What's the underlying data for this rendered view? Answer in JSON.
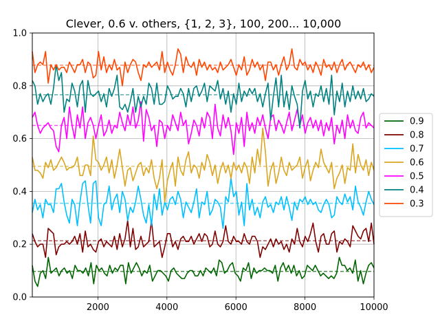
{
  "chart_data": {
    "type": "line",
    "title": "Clever, 0.6 v. others, {1, 2, 3}, 100, 200... 10,000",
    "xlabel": "",
    "ylabel": "",
    "xlim": [
      100,
      10000
    ],
    "ylim": [
      0.0,
      1.0
    ],
    "xticks": [
      2000,
      4000,
      6000,
      8000,
      10000
    ],
    "xtick_labels": [
      "2000",
      "4000",
      "6000",
      "8000",
      "10000"
    ],
    "yticks": [
      0.0,
      0.2,
      0.4,
      0.6,
      0.8,
      1.0
    ],
    "ytick_labels": [
      "0.0",
      "0.2",
      "0.4",
      "0.6",
      "0.8",
      "1.0"
    ],
    "grid": true,
    "legend_position": "right",
    "series": [
      {
        "name": "0.9",
        "color": "#006400",
        "mean": 0.097,
        "values": [
          0.12,
          0.06,
          0.04,
          0.09,
          0.1,
          0.07,
          0.15,
          0.09,
          0.1,
          0.11,
          0.08,
          0.1,
          0.11,
          0.09,
          0.1,
          0.07,
          0.12,
          0.1,
          0.1,
          0.09,
          0.11,
          0.08,
          0.13,
          0.05,
          0.12,
          0.1,
          0.11,
          0.09,
          0.08,
          0.12,
          0.09,
          0.11,
          0.1,
          0.12,
          0.12,
          0.05,
          0.13,
          0.09,
          0.11,
          0.13,
          0.11,
          0.08,
          0.1,
          0.09,
          0.12,
          0.06,
          0.08,
          0.1,
          0.1,
          0.09,
          0.08,
          0.06,
          0.1,
          0.11,
          0.09,
          0.08,
          0.07,
          0.07,
          0.09,
          0.1,
          0.1,
          0.08,
          0.08,
          0.1,
          0.08,
          0.11,
          0.1,
          0.09,
          0.11,
          0.08,
          0.14,
          0.13,
          0.09,
          0.1,
          0.12,
          0.13,
          0.09,
          0.08,
          0.06,
          0.11,
          0.1,
          0.13,
          0.07,
          0.11,
          0.09,
          0.1,
          0.1,
          0.11,
          0.1,
          0.1,
          0.09,
          0.12,
          0.06,
          0.11,
          0.13,
          0.1,
          0.12,
          0.09,
          0.12,
          0.08,
          0.1,
          0.07,
          0.08,
          0.12,
          0.11,
          0.1,
          0.12,
          0.1,
          0.08,
          0.09,
          0.08,
          0.07,
          0.08,
          0.07,
          0.09,
          0.15,
          0.12,
          0.12,
          0.1,
          0.11,
          0.09,
          0.14,
          0.06,
          0.1,
          0.05,
          0.09,
          0.12,
          0.13,
          0.11
        ]
      },
      {
        "name": "0.8",
        "color": "#7f0000",
        "mean": 0.213,
        "values": [
          0.24,
          0.21,
          0.19,
          0.2,
          0.2,
          0.15,
          0.26,
          0.25,
          0.24,
          0.16,
          0.19,
          0.2,
          0.2,
          0.21,
          0.2,
          0.21,
          0.23,
          0.2,
          0.24,
          0.17,
          0.25,
          0.19,
          0.2,
          0.18,
          0.17,
          0.21,
          0.22,
          0.19,
          0.21,
          0.2,
          0.19,
          0.23,
          0.18,
          0.24,
          0.19,
          0.22,
          0.29,
          0.19,
          0.26,
          0.18,
          0.19,
          0.23,
          0.19,
          0.2,
          0.21,
          0.29,
          0.19,
          0.2,
          0.21,
          0.15,
          0.19,
          0.24,
          0.24,
          0.19,
          0.21,
          0.18,
          0.22,
          0.23,
          0.21,
          0.21,
          0.23,
          0.2,
          0.22,
          0.24,
          0.21,
          0.24,
          0.23,
          0.19,
          0.2,
          0.25,
          0.2,
          0.19,
          0.21,
          0.27,
          0.21,
          0.2,
          0.23,
          0.21,
          0.21,
          0.2,
          0.24,
          0.21,
          0.2,
          0.23,
          0.23,
          0.21,
          0.15,
          0.19,
          0.18,
          0.2,
          0.22,
          0.19,
          0.22,
          0.2,
          0.21,
          0.18,
          0.2,
          0.17,
          0.22,
          0.2,
          0.26,
          0.21,
          0.19,
          0.23,
          0.21,
          0.24,
          0.28,
          0.21,
          0.17,
          0.23,
          0.24,
          0.2,
          0.2,
          0.24,
          0.25,
          0.17,
          0.21,
          0.2,
          0.22,
          0.21,
          0.19,
          0.27,
          0.25,
          0.23,
          0.22,
          0.25,
          0.26,
          0.21,
          0.28,
          0.2
        ]
      },
      {
        "name": "0.7",
        "color": "#00bfff",
        "mean": 0.355,
        "values": [
          0.32,
          0.37,
          0.33,
          0.35,
          0.3,
          0.37,
          0.35,
          0.35,
          0.32,
          0.41,
          0.41,
          0.43,
          0.36,
          0.31,
          0.28,
          0.37,
          0.35,
          0.27,
          0.36,
          0.43,
          0.44,
          0.35,
          0.28,
          0.43,
          0.44,
          0.3,
          0.27,
          0.35,
          0.36,
          0.42,
          0.33,
          0.37,
          0.39,
          0.32,
          0.4,
          0.37,
          0.29,
          0.34,
          0.32,
          0.36,
          0.42,
          0.37,
          0.31,
          0.28,
          0.35,
          0.27,
          0.39,
          0.33,
          0.41,
          0.31,
          0.36,
          0.33,
          0.37,
          0.38,
          0.35,
          0.4,
          0.37,
          0.3,
          0.36,
          0.34,
          0.32,
          0.36,
          0.41,
          0.3,
          0.36,
          0.35,
          0.4,
          0.31,
          0.33,
          0.37,
          0.36,
          0.34,
          0.26,
          0.38,
          0.36,
          0.45,
          0.38,
          0.4,
          0.31,
          0.36,
          0.27,
          0.43,
          0.33,
          0.37,
          0.31,
          0.34,
          0.3,
          0.36,
          0.38,
          0.34,
          0.35,
          0.32,
          0.36,
          0.35,
          0.38,
          0.33,
          0.38,
          0.34,
          0.29,
          0.36,
          0.33,
          0.37,
          0.36,
          0.38,
          0.35,
          0.37,
          0.35,
          0.36,
          0.33,
          0.32,
          0.35,
          0.37,
          0.35,
          0.3,
          0.31,
          0.38,
          0.36,
          0.35,
          0.39,
          0.36,
          0.38,
          0.33,
          0.42,
          0.36,
          0.34,
          0.31,
          0.36,
          0.4,
          0.37,
          0.35
        ]
      },
      {
        "name": "0.6",
        "color": "#daa520",
        "mean": 0.495,
        "values": [
          0.53,
          0.48,
          0.48,
          0.47,
          0.45,
          0.51,
          0.49,
          0.52,
          0.48,
          0.49,
          0.51,
          0.53,
          0.51,
          0.48,
          0.49,
          0.49,
          0.5,
          0.53,
          0.46,
          0.46,
          0.5,
          0.5,
          0.46,
          0.61,
          0.52,
          0.51,
          0.48,
          0.5,
          0.53,
          0.47,
          0.52,
          0.45,
          0.5,
          0.56,
          0.49,
          0.42,
          0.48,
          0.49,
          0.44,
          0.47,
          0.5,
          0.51,
          0.46,
          0.49,
          0.47,
          0.52,
          0.45,
          0.41,
          0.45,
          0.52,
          0.36,
          0.44,
          0.48,
          0.51,
          0.42,
          0.53,
          0.48,
          0.46,
          0.52,
          0.55,
          0.47,
          0.5,
          0.49,
          0.45,
          0.51,
          0.48,
          0.54,
          0.51,
          0.46,
          0.5,
          0.43,
          0.48,
          0.51,
          0.47,
          0.5,
          0.45,
          0.51,
          0.48,
          0.5,
          0.47,
          0.51,
          0.49,
          0.43,
          0.53,
          0.47,
          0.56,
          0.5,
          0.64,
          0.55,
          0.42,
          0.48,
          0.51,
          0.43,
          0.47,
          0.53,
          0.48,
          0.46,
          0.51,
          0.48,
          0.49,
          0.5,
          0.53,
          0.45,
          0.49,
          0.52,
          0.44,
          0.48,
          0.51,
          0.49,
          0.56,
          0.51,
          0.49,
          0.47,
          0.51,
          0.41,
          0.45,
          0.47,
          0.5,
          0.43,
          0.49,
          0.48,
          0.58,
          0.47,
          0.54,
          0.5,
          0.48,
          0.52,
          0.46,
          0.51,
          0.48
        ]
      },
      {
        "name": "0.5",
        "color": "#ff00ff",
        "mean": 0.65,
        "values": [
          0.68,
          0.7,
          0.65,
          0.62,
          0.64,
          0.65,
          0.66,
          0.64,
          0.63,
          0.57,
          0.55,
          0.65,
          0.68,
          0.6,
          0.72,
          0.65,
          0.6,
          0.69,
          0.64,
          0.72,
          0.6,
          0.66,
          0.68,
          0.65,
          0.6,
          0.65,
          0.69,
          0.61,
          0.63,
          0.67,
          0.62,
          0.65,
          0.64,
          0.7,
          0.66,
          0.63,
          0.69,
          0.65,
          0.72,
          0.64,
          0.67,
          0.74,
          0.59,
          0.71,
          0.68,
          0.63,
          0.65,
          0.57,
          0.67,
          0.66,
          0.6,
          0.65,
          0.63,
          0.69,
          0.66,
          0.63,
          0.7,
          0.65,
          0.67,
          0.58,
          0.62,
          0.67,
          0.65,
          0.61,
          0.68,
          0.64,
          0.7,
          0.68,
          0.6,
          0.73,
          0.64,
          0.61,
          0.69,
          0.64,
          0.68,
          0.63,
          0.54,
          0.66,
          0.62,
          0.68,
          0.57,
          0.7,
          0.63,
          0.66,
          0.62,
          0.68,
          0.65,
          0.69,
          0.64,
          0.6,
          0.68,
          0.69,
          0.63,
          0.67,
          0.65,
          0.62,
          0.66,
          0.7,
          0.63,
          0.67,
          0.71,
          0.65,
          0.69,
          0.62,
          0.66,
          0.68,
          0.64,
          0.67,
          0.63,
          0.67,
          0.61,
          0.66,
          0.63,
          0.68,
          0.58,
          0.65,
          0.62,
          0.67,
          0.6,
          0.69,
          0.64,
          0.67,
          0.63,
          0.62,
          0.68,
          0.7,
          0.64,
          0.66,
          0.65,
          0.64
        ]
      },
      {
        "name": "0.4",
        "color": "#008080",
        "mean": 0.766,
        "values": [
          0.82,
          0.8,
          0.73,
          0.77,
          0.74,
          0.76,
          0.77,
          0.73,
          0.79,
          0.88,
          0.82,
          0.85,
          0.7,
          0.75,
          0.74,
          0.81,
          0.78,
          0.72,
          0.8,
          0.82,
          0.7,
          0.82,
          0.77,
          0.76,
          0.77,
          0.78,
          0.74,
          0.77,
          0.72,
          0.79,
          0.76,
          0.79,
          0.84,
          0.72,
          0.71,
          0.73,
          0.7,
          0.74,
          0.79,
          0.7,
          0.76,
          0.72,
          0.76,
          0.73,
          0.81,
          0.79,
          0.73,
          0.81,
          0.73,
          0.73,
          0.74,
          0.8,
          0.78,
          0.75,
          0.76,
          0.76,
          0.79,
          0.77,
          0.72,
          0.79,
          0.74,
          0.79,
          0.8,
          0.76,
          0.78,
          0.81,
          0.74,
          0.8,
          0.79,
          0.78,
          0.82,
          0.75,
          0.79,
          0.73,
          0.78,
          0.7,
          0.77,
          0.73,
          0.81,
          0.74,
          0.78,
          0.76,
          0.79,
          0.77,
          0.79,
          0.74,
          0.77,
          0.72,
          0.77,
          0.81,
          0.67,
          0.76,
          0.83,
          0.72,
          0.84,
          0.72,
          0.78,
          0.71,
          0.8,
          0.76,
          0.73,
          0.64,
          0.78,
          0.82,
          0.75,
          0.78,
          0.72,
          0.77,
          0.76,
          0.8,
          0.74,
          0.79,
          0.73,
          0.84,
          0.69,
          0.78,
          0.74,
          0.81,
          0.72,
          0.78,
          0.74,
          0.8,
          0.75,
          0.78,
          0.75,
          0.79,
          0.74,
          0.75,
          0.77,
          0.76
        ]
      },
      {
        "name": "0.3",
        "color": "#ff4500",
        "mean": 0.878,
        "values": [
          0.93,
          0.85,
          0.88,
          0.89,
          0.88,
          0.93,
          0.81,
          0.88,
          0.86,
          0.88,
          0.86,
          0.87,
          0.87,
          0.85,
          0.89,
          0.87,
          0.85,
          0.88,
          0.88,
          0.9,
          0.85,
          0.89,
          0.88,
          0.83,
          0.84,
          0.93,
          0.86,
          0.91,
          0.85,
          0.88,
          0.86,
          0.9,
          0.86,
          0.87,
          0.8,
          0.89,
          0.85,
          0.88,
          0.9,
          0.89,
          0.85,
          0.82,
          0.88,
          0.87,
          0.89,
          0.87,
          0.88,
          0.89,
          0.86,
          0.93,
          0.85,
          0.89,
          0.86,
          0.84,
          0.88,
          0.94,
          0.92,
          0.85,
          0.91,
          0.88,
          0.87,
          0.89,
          0.84,
          0.9,
          0.87,
          0.89,
          0.86,
          0.88,
          0.86,
          0.87,
          0.85,
          0.89,
          0.86,
          0.87,
          0.88,
          0.9,
          0.87,
          0.84,
          0.88,
          0.86,
          0.91,
          0.84,
          0.86,
          0.9,
          0.87,
          0.89,
          0.86,
          0.88,
          0.82,
          0.89,
          0.89,
          0.86,
          0.88,
          0.84,
          0.88,
          0.91,
          0.86,
          0.88,
          0.94,
          0.87,
          0.86,
          0.9,
          0.88,
          0.89,
          0.86,
          0.88,
          0.85,
          0.89,
          0.87,
          0.84,
          0.9,
          0.87,
          0.88,
          0.86,
          0.89,
          0.85,
          0.88,
          0.9,
          0.86,
          0.88,
          0.89,
          0.87,
          0.85,
          0.88,
          0.87,
          0.89,
          0.86,
          0.88,
          0.85,
          0.87
        ]
      }
    ]
  }
}
